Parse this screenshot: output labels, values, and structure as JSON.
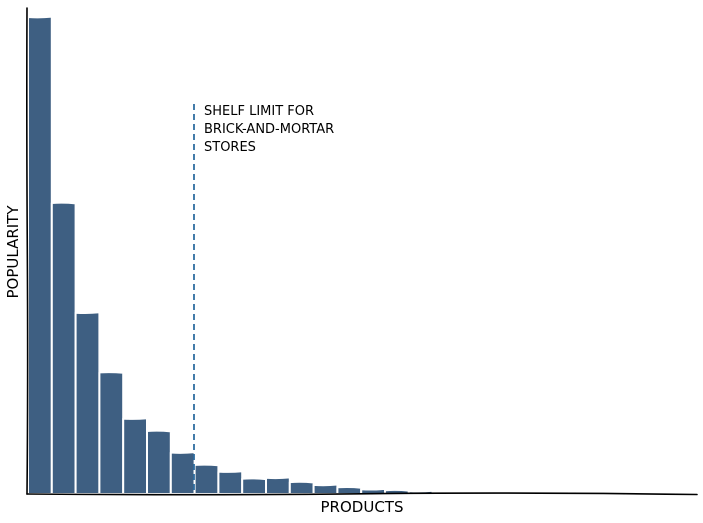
{
  "chart_data": {
    "type": "bar",
    "style": "xkcd",
    "xlabel": "PRODUCTS",
    "ylabel": "POPULARITY",
    "ylim": [
      0,
      100
    ],
    "bar_color": "#3e5f82",
    "edge_color": "#ffffff",
    "values": [
      100,
      61,
      38,
      25.5,
      15.8,
      13.2,
      8.7,
      6.1,
      4.7,
      3.2,
      3.4,
      2.5,
      1.9,
      1.4,
      1.0,
      0.8,
      0.6,
      0.45,
      0.35,
      0.3,
      0.25,
      0.2,
      0.18,
      0.15,
      0.12,
      0.1,
      0.08,
      0.06
    ],
    "annotations": [
      {
        "type": "vertical-dashed-line",
        "after_bar": 7,
        "color": "#2f6da0",
        "text_lines": [
          "SHELF LIMIT FOR",
          "BRICK-AND-MORTAR",
          "STORES"
        ]
      }
    ]
  }
}
